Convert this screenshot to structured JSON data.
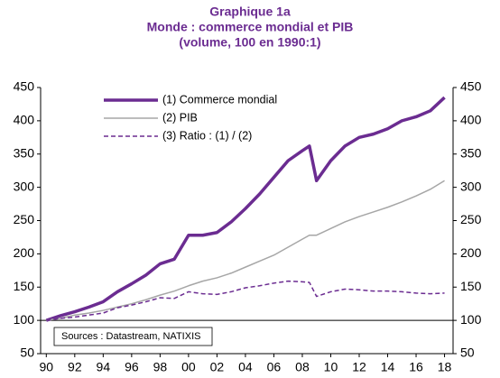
{
  "chart_data": {
    "type": "line",
    "title": "Graphique 1a",
    "subtitle": "Monde : commerce mondial et PIB",
    "subtitle2": "(volume, 100 en 1990:1)",
    "annotation": "Sources : Datastream, NATIXIS",
    "x": [
      1990,
      1991,
      1992,
      1993,
      1994,
      1995,
      1996,
      1997,
      1998,
      1999,
      2000,
      2001,
      2002,
      2003,
      2004,
      2005,
      2006,
      2007,
      2008,
      2008.5,
      2009,
      2010,
      2011,
      2012,
      2013,
      2014,
      2015,
      2016,
      2017,
      2018
    ],
    "series": [
      {
        "name": "(1) Commerce mondial",
        "color": "#6b2c91",
        "style": "thick",
        "values": [
          100,
          107,
          113,
          120,
          128,
          143,
          155,
          168,
          185,
          192,
          228,
          228,
          232,
          248,
          268,
          290,
          315,
          340,
          355,
          362,
          310,
          340,
          362,
          375,
          380,
          388,
          400,
          406,
          415,
          435
        ]
      },
      {
        "name": "(2) PIB",
        "color": "#a6a6a6",
        "style": "solid",
        "values": [
          100,
          103,
          108,
          111,
          115,
          120,
          125,
          131,
          138,
          144,
          152,
          159,
          164,
          171,
          180,
          189,
          198,
          210,
          222,
          228,
          228,
          238,
          248,
          256,
          263,
          270,
          278,
          287,
          297,
          310
        ]
      },
      {
        "name": "(3) Ratio : (1) / (2)",
        "color": "#6b2c91",
        "style": "dashed",
        "values": [
          100,
          103,
          105,
          108,
          111,
          119,
          123,
          128,
          134,
          133,
          143,
          140,
          139,
          143,
          149,
          152,
          156,
          159,
          158,
          157,
          136,
          143,
          147,
          146,
          144,
          144,
          143,
          141,
          140,
          141
        ]
      }
    ],
    "xlim": [
      1989.6,
      2018.6
    ],
    "xticks": [
      {
        "value": 1990,
        "label": "90"
      },
      {
        "value": 1992,
        "label": "92"
      },
      {
        "value": 1994,
        "label": "94"
      },
      {
        "value": 1996,
        "label": "96"
      },
      {
        "value": 1998,
        "label": "98"
      },
      {
        "value": 2000,
        "label": "00"
      },
      {
        "value": 2002,
        "label": "02"
      },
      {
        "value": 2004,
        "label": "04"
      },
      {
        "value": 2006,
        "label": "06"
      },
      {
        "value": 2008,
        "label": "08"
      },
      {
        "value": 2010,
        "label": "10"
      },
      {
        "value": 2012,
        "label": "12"
      },
      {
        "value": 2014,
        "label": "14"
      },
      {
        "value": 2016,
        "label": "16"
      },
      {
        "value": 2018,
        "label": "18"
      }
    ],
    "ylim": [
      50,
      450
    ],
    "yticks": [
      50,
      100,
      150,
      200,
      250,
      300,
      350,
      400,
      450
    ],
    "y2lim": [
      50,
      450
    ],
    "y2ticks": [
      50,
      100,
      150,
      200,
      250,
      300,
      350,
      400,
      450
    ]
  }
}
